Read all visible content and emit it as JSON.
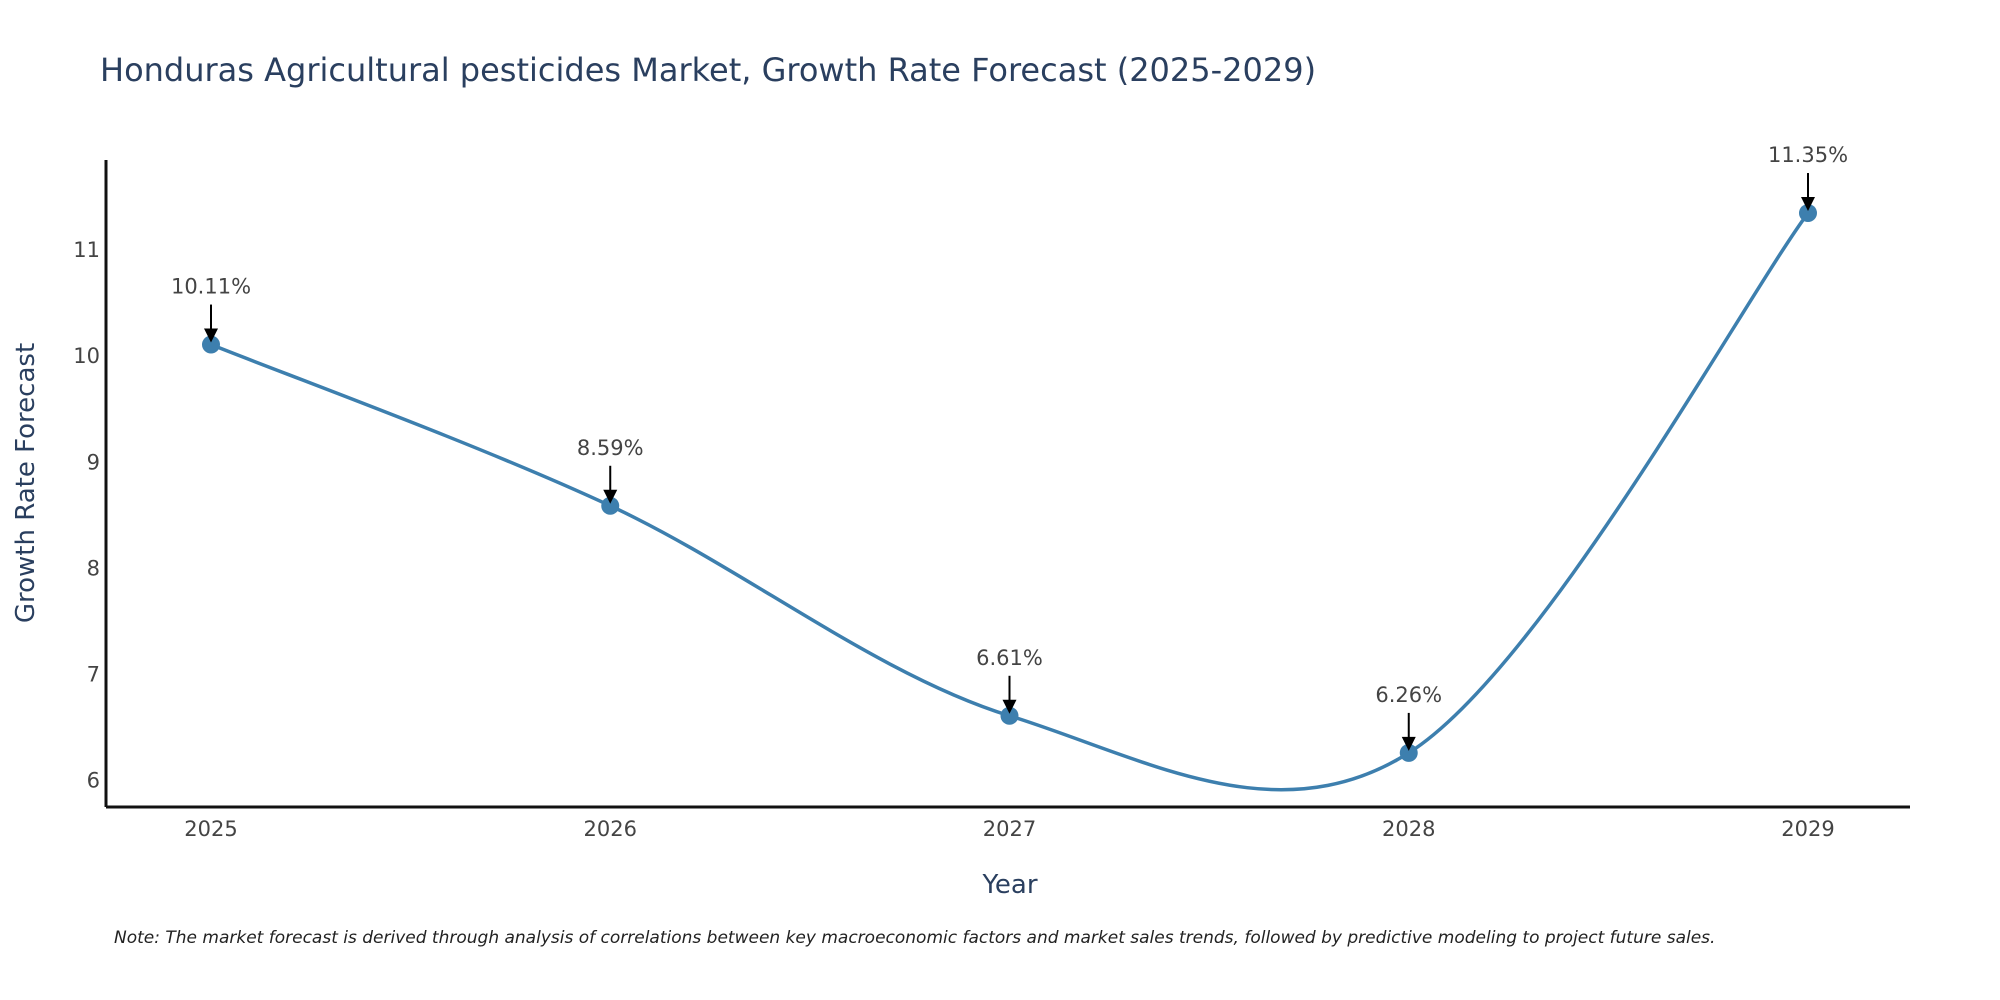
{
  "chart_data": {
    "type": "line",
    "title": "Honduras Agricultural pesticides Market, Growth Rate Forecast (2025-2029)",
    "xlabel": "Year",
    "ylabel": "Growth Rate Forecast",
    "categories": [
      "2025",
      "2026",
      "2027",
      "2028",
      "2029"
    ],
    "series": [
      {
        "name": "Growth Rate Forecast",
        "values": [
          10.11,
          8.59,
          6.61,
          6.26,
          11.35
        ],
        "labels": [
          "10.11%",
          "8.59%",
          "6.61%",
          "6.26%",
          "11.35%"
        ]
      }
    ],
    "yticks": [
      "6",
      "7",
      "8",
      "9",
      "10",
      "11"
    ],
    "ylim": [
      5.75,
      11.85
    ],
    "grid": false,
    "line_color": "#3d7fae",
    "marker_color": "#3d7fae",
    "note": "Note: The market forecast is derived through analysis of correlations between key macroeconomic factors and market sales trends, followed by predictive modeling to project future sales."
  }
}
